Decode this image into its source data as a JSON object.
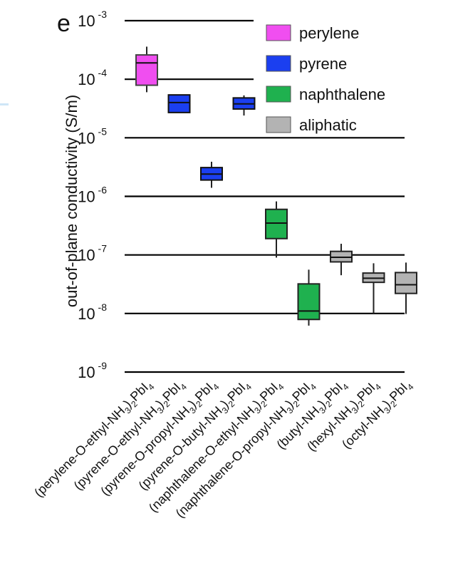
{
  "panel_label": "e",
  "chart_data": {
    "type": "box",
    "ylabel": "out-of-plane conductivity (S/m)",
    "yscale": "log",
    "ylim": [
      1e-09,
      0.001
    ],
    "yticks": [
      {
        "value": 1e-09,
        "base": "10",
        "exp": "-9"
      },
      {
        "value": 1e-08,
        "base": "10",
        "exp": "-8"
      },
      {
        "value": 1e-07,
        "base": "10",
        "exp": "-7"
      },
      {
        "value": 1e-06,
        "base": "10",
        "exp": "-6"
      },
      {
        "value": 1e-05,
        "base": "10",
        "exp": "-5"
      },
      {
        "value": 0.0001,
        "base": "10",
        "exp": "-4"
      },
      {
        "value": 0.001,
        "base": "10",
        "exp": "-3"
      }
    ],
    "grid": "horizontal",
    "legend_position": "top-right",
    "legend": [
      {
        "name": "perylene",
        "color": "#f04ef0"
      },
      {
        "name": "pyrene",
        "color": "#1b3ff0"
      },
      {
        "name": "naphthalene",
        "color": "#1fb14f"
      },
      {
        "name": "aliphatic",
        "color": "#b3b3b3"
      }
    ],
    "boxes": [
      {
        "label": "(perylene-O-ethyl-NH",
        "suffix": ")",
        "pre_sub": "3",
        "post": "PbI",
        "post_sub": "4",
        "sub2": "2",
        "group": "perylene",
        "min": 6e-05,
        "q1": 7.9e-05,
        "median": 0.00019,
        "q3": 0.00026,
        "max": 0.00036
      },
      {
        "label": "(pyrene-O-ethyl-NH",
        "suffix": ")",
        "pre_sub": "3",
        "post": "PbI",
        "post_sub": "4",
        "sub2": "2",
        "group": "pyrene",
        "min": 2.7e-05,
        "q1": 2.7e-05,
        "median": 4e-05,
        "q3": 5.4e-05,
        "max": 5.4e-05
      },
      {
        "label": "(pyrene-O-propyl-NH",
        "suffix": ")",
        "pre_sub": "3",
        "post": "PbI",
        "post_sub": "4",
        "sub2": "2",
        "group": "pyrene",
        "min": 1.4e-06,
        "q1": 1.9e-06,
        "median": 2.4e-06,
        "q3": 3.1e-06,
        "max": 3.9e-06
      },
      {
        "label": "(pyrene-O-butyl-NH",
        "suffix": ")",
        "pre_sub": "3",
        "post": "PbI",
        "post_sub": "4",
        "sub2": "2",
        "group": "pyrene",
        "min": 2.4e-05,
        "q1": 3.1e-05,
        "median": 3.8e-05,
        "q3": 4.8e-05,
        "max": 5.3e-05
      },
      {
        "label": "(naphthalene-O-ethyl-NH",
        "suffix": ")",
        "pre_sub": "3",
        "post": "PbI",
        "post_sub": "4",
        "sub2": "2",
        "group": "naphthalene",
        "min": 9e-08,
        "q1": 1.9e-07,
        "median": 3.5e-07,
        "q3": 6e-07,
        "max": 8.2e-07
      },
      {
        "label": "(naphthalene-O-propyl-NH",
        "suffix": ")",
        "pre_sub": "3",
        "post": "PbI",
        "post_sub": "4",
        "sub2": "2",
        "group": "naphthalene",
        "min": 6.2e-09,
        "q1": 7.9e-09,
        "median": 1.1e-08,
        "q3": 3.2e-08,
        "max": 5.6e-08
      },
      {
        "label": "(butyl-NH",
        "suffix": ")",
        "pre_sub": "3",
        "post": "PbI",
        "post_sub": "4",
        "sub2": "2",
        "group": "aliphatic",
        "min": 4.5e-08,
        "q1": 7.6e-08,
        "median": 9.1e-08,
        "q3": 1.15e-07,
        "max": 1.55e-07
      },
      {
        "label": "(hexyl-NH",
        "suffix": ")",
        "pre_sub": "3",
        "post": "PbI",
        "post_sub": "4",
        "sub2": "2",
        "group": "aliphatic",
        "min": 1e-08,
        "q1": 3.4e-08,
        "median": 4e-08,
        "q3": 4.9e-08,
        "max": 7.2e-08
      },
      {
        "label": "(octyl-NH",
        "suffix": ")",
        "pre_sub": "3",
        "post": "PbI",
        "post_sub": "4",
        "sub2": "2",
        "group": "aliphatic",
        "min": 9.8e-09,
        "q1": 2.2e-08,
        "median": 3.1e-08,
        "q3": 5e-08,
        "max": 7.4e-08
      }
    ]
  }
}
